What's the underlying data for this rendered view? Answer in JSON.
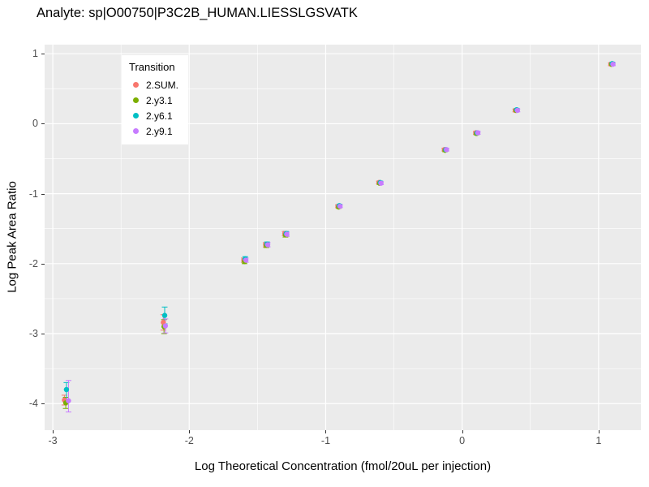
{
  "chart_data": {
    "type": "scatter",
    "title": "Analyte: sp|O00750|P3C2B_HUMAN.LIESSLGSVATK",
    "xlabel": "Log Theoretical Concentration (fmol/20uL per injection)",
    "ylabel": "Log Peak Area Ratio",
    "xlim": [
      -3.06,
      1.31
    ],
    "ylim": [
      -4.38,
      1.13
    ],
    "xticks": [
      -3,
      -2,
      -1,
      0,
      1
    ],
    "yticks": [
      -4,
      -3,
      -2,
      -1,
      0,
      1
    ],
    "grid": true,
    "panel_background": "#EBEBEB",
    "gridline_color": "#FFFFFF",
    "legend_title": "Transition",
    "legend_position": "inside-top-left",
    "series": [
      {
        "name": "2.SUM.",
        "color": "#F8766D",
        "points": [
          {
            "x": -2.915,
            "y": -3.95,
            "lo": -4.02,
            "hi": -3.88
          },
          {
            "x": -2.19,
            "y": -2.84,
            "lo": -2.95,
            "hi": -2.73
          },
          {
            "x": -1.6,
            "y": -1.95,
            "lo": -1.98,
            "hi": -1.92
          },
          {
            "x": -1.44,
            "y": -1.73,
            "lo": -1.76,
            "hi": -1.7
          },
          {
            "x": -1.3,
            "y": -1.57,
            "lo": -1.6,
            "hi": -1.54
          },
          {
            "x": -0.91,
            "y": -1.18,
            "lo": -1.2,
            "hi": -1.16
          },
          {
            "x": -0.61,
            "y": -0.84,
            "lo": -0.86,
            "hi": -0.82
          },
          {
            "x": -0.13,
            "y": -0.37,
            "lo": -0.39,
            "hi": -0.35
          },
          {
            "x": 0.1,
            "y": -0.13,
            "lo": -0.15,
            "hi": -0.11
          },
          {
            "x": 0.39,
            "y": 0.19,
            "lo": 0.17,
            "hi": 0.21
          },
          {
            "x": 1.09,
            "y": 0.85,
            "lo": 0.83,
            "hi": 0.87
          }
        ]
      },
      {
        "name": "2.y3.1",
        "color": "#7CAE00",
        "points": [
          {
            "x": -2.905,
            "y": -3.99,
            "lo": -4.07,
            "hi": -3.91
          },
          {
            "x": -2.185,
            "y": -2.9,
            "lo": -3.0,
            "hi": -2.8
          },
          {
            "x": -1.595,
            "y": -1.97,
            "lo": -2.0,
            "hi": -1.94
          },
          {
            "x": -1.435,
            "y": -1.74,
            "lo": -1.77,
            "hi": -1.71
          },
          {
            "x": -1.295,
            "y": -1.59,
            "lo": -1.62,
            "hi": -1.56
          },
          {
            "x": -0.905,
            "y": -1.19,
            "lo": -1.21,
            "hi": -1.17
          },
          {
            "x": -0.605,
            "y": -0.85,
            "lo": -0.87,
            "hi": -0.83
          },
          {
            "x": -0.125,
            "y": -0.38,
            "lo": -0.4,
            "hi": -0.36
          },
          {
            "x": 0.105,
            "y": -0.14,
            "lo": -0.16,
            "hi": -0.12
          },
          {
            "x": 0.395,
            "y": 0.19,
            "lo": 0.17,
            "hi": 0.21
          },
          {
            "x": 1.095,
            "y": 0.85,
            "lo": 0.83,
            "hi": 0.87
          }
        ]
      },
      {
        "name": "2.y6.1",
        "color": "#00BFC4",
        "points": [
          {
            "x": -2.9,
            "y": -3.8,
            "lo": -3.94,
            "hi": -3.7
          },
          {
            "x": -2.18,
            "y": -2.74,
            "lo": -2.86,
            "hi": -2.62
          },
          {
            "x": -1.59,
            "y": -1.93,
            "lo": -1.96,
            "hi": -1.9
          },
          {
            "x": -1.43,
            "y": -1.72,
            "lo": -1.75,
            "hi": -1.69
          },
          {
            "x": -1.29,
            "y": -1.57,
            "lo": -1.6,
            "hi": -1.54
          },
          {
            "x": -0.9,
            "y": -1.17,
            "lo": -1.19,
            "hi": -1.15
          },
          {
            "x": -0.6,
            "y": -0.84,
            "lo": -0.86,
            "hi": -0.82
          },
          {
            "x": -0.12,
            "y": -0.37,
            "lo": -0.39,
            "hi": -0.35
          },
          {
            "x": 0.11,
            "y": -0.13,
            "lo": -0.15,
            "hi": -0.11
          },
          {
            "x": 0.4,
            "y": 0.2,
            "lo": 0.18,
            "hi": 0.22
          },
          {
            "x": 1.1,
            "y": 0.86,
            "lo": 0.84,
            "hi": 0.88
          }
        ]
      },
      {
        "name": "2.y9.1",
        "color": "#C77CFF",
        "points": [
          {
            "x": -2.885,
            "y": -3.96,
            "lo": -4.12,
            "hi": -3.67
          },
          {
            "x": -2.175,
            "y": -2.89,
            "lo": -2.99,
            "hi": -2.79
          },
          {
            "x": -1.585,
            "y": -1.95,
            "lo": -1.98,
            "hi": -1.92
          },
          {
            "x": -1.425,
            "y": -1.73,
            "lo": -1.76,
            "hi": -1.7
          },
          {
            "x": -1.285,
            "y": -1.58,
            "lo": -1.61,
            "hi": -1.55
          },
          {
            "x": -0.895,
            "y": -1.18,
            "lo": -1.2,
            "hi": -1.16
          },
          {
            "x": -0.595,
            "y": -0.85,
            "lo": -0.87,
            "hi": -0.83
          },
          {
            "x": -0.115,
            "y": -0.37,
            "lo": -0.39,
            "hi": -0.35
          },
          {
            "x": 0.115,
            "y": -0.13,
            "lo": -0.15,
            "hi": -0.11
          },
          {
            "x": 0.405,
            "y": 0.19,
            "lo": 0.17,
            "hi": 0.21
          },
          {
            "x": 1.105,
            "y": 0.85,
            "lo": 0.83,
            "hi": 0.87
          }
        ]
      }
    ]
  }
}
